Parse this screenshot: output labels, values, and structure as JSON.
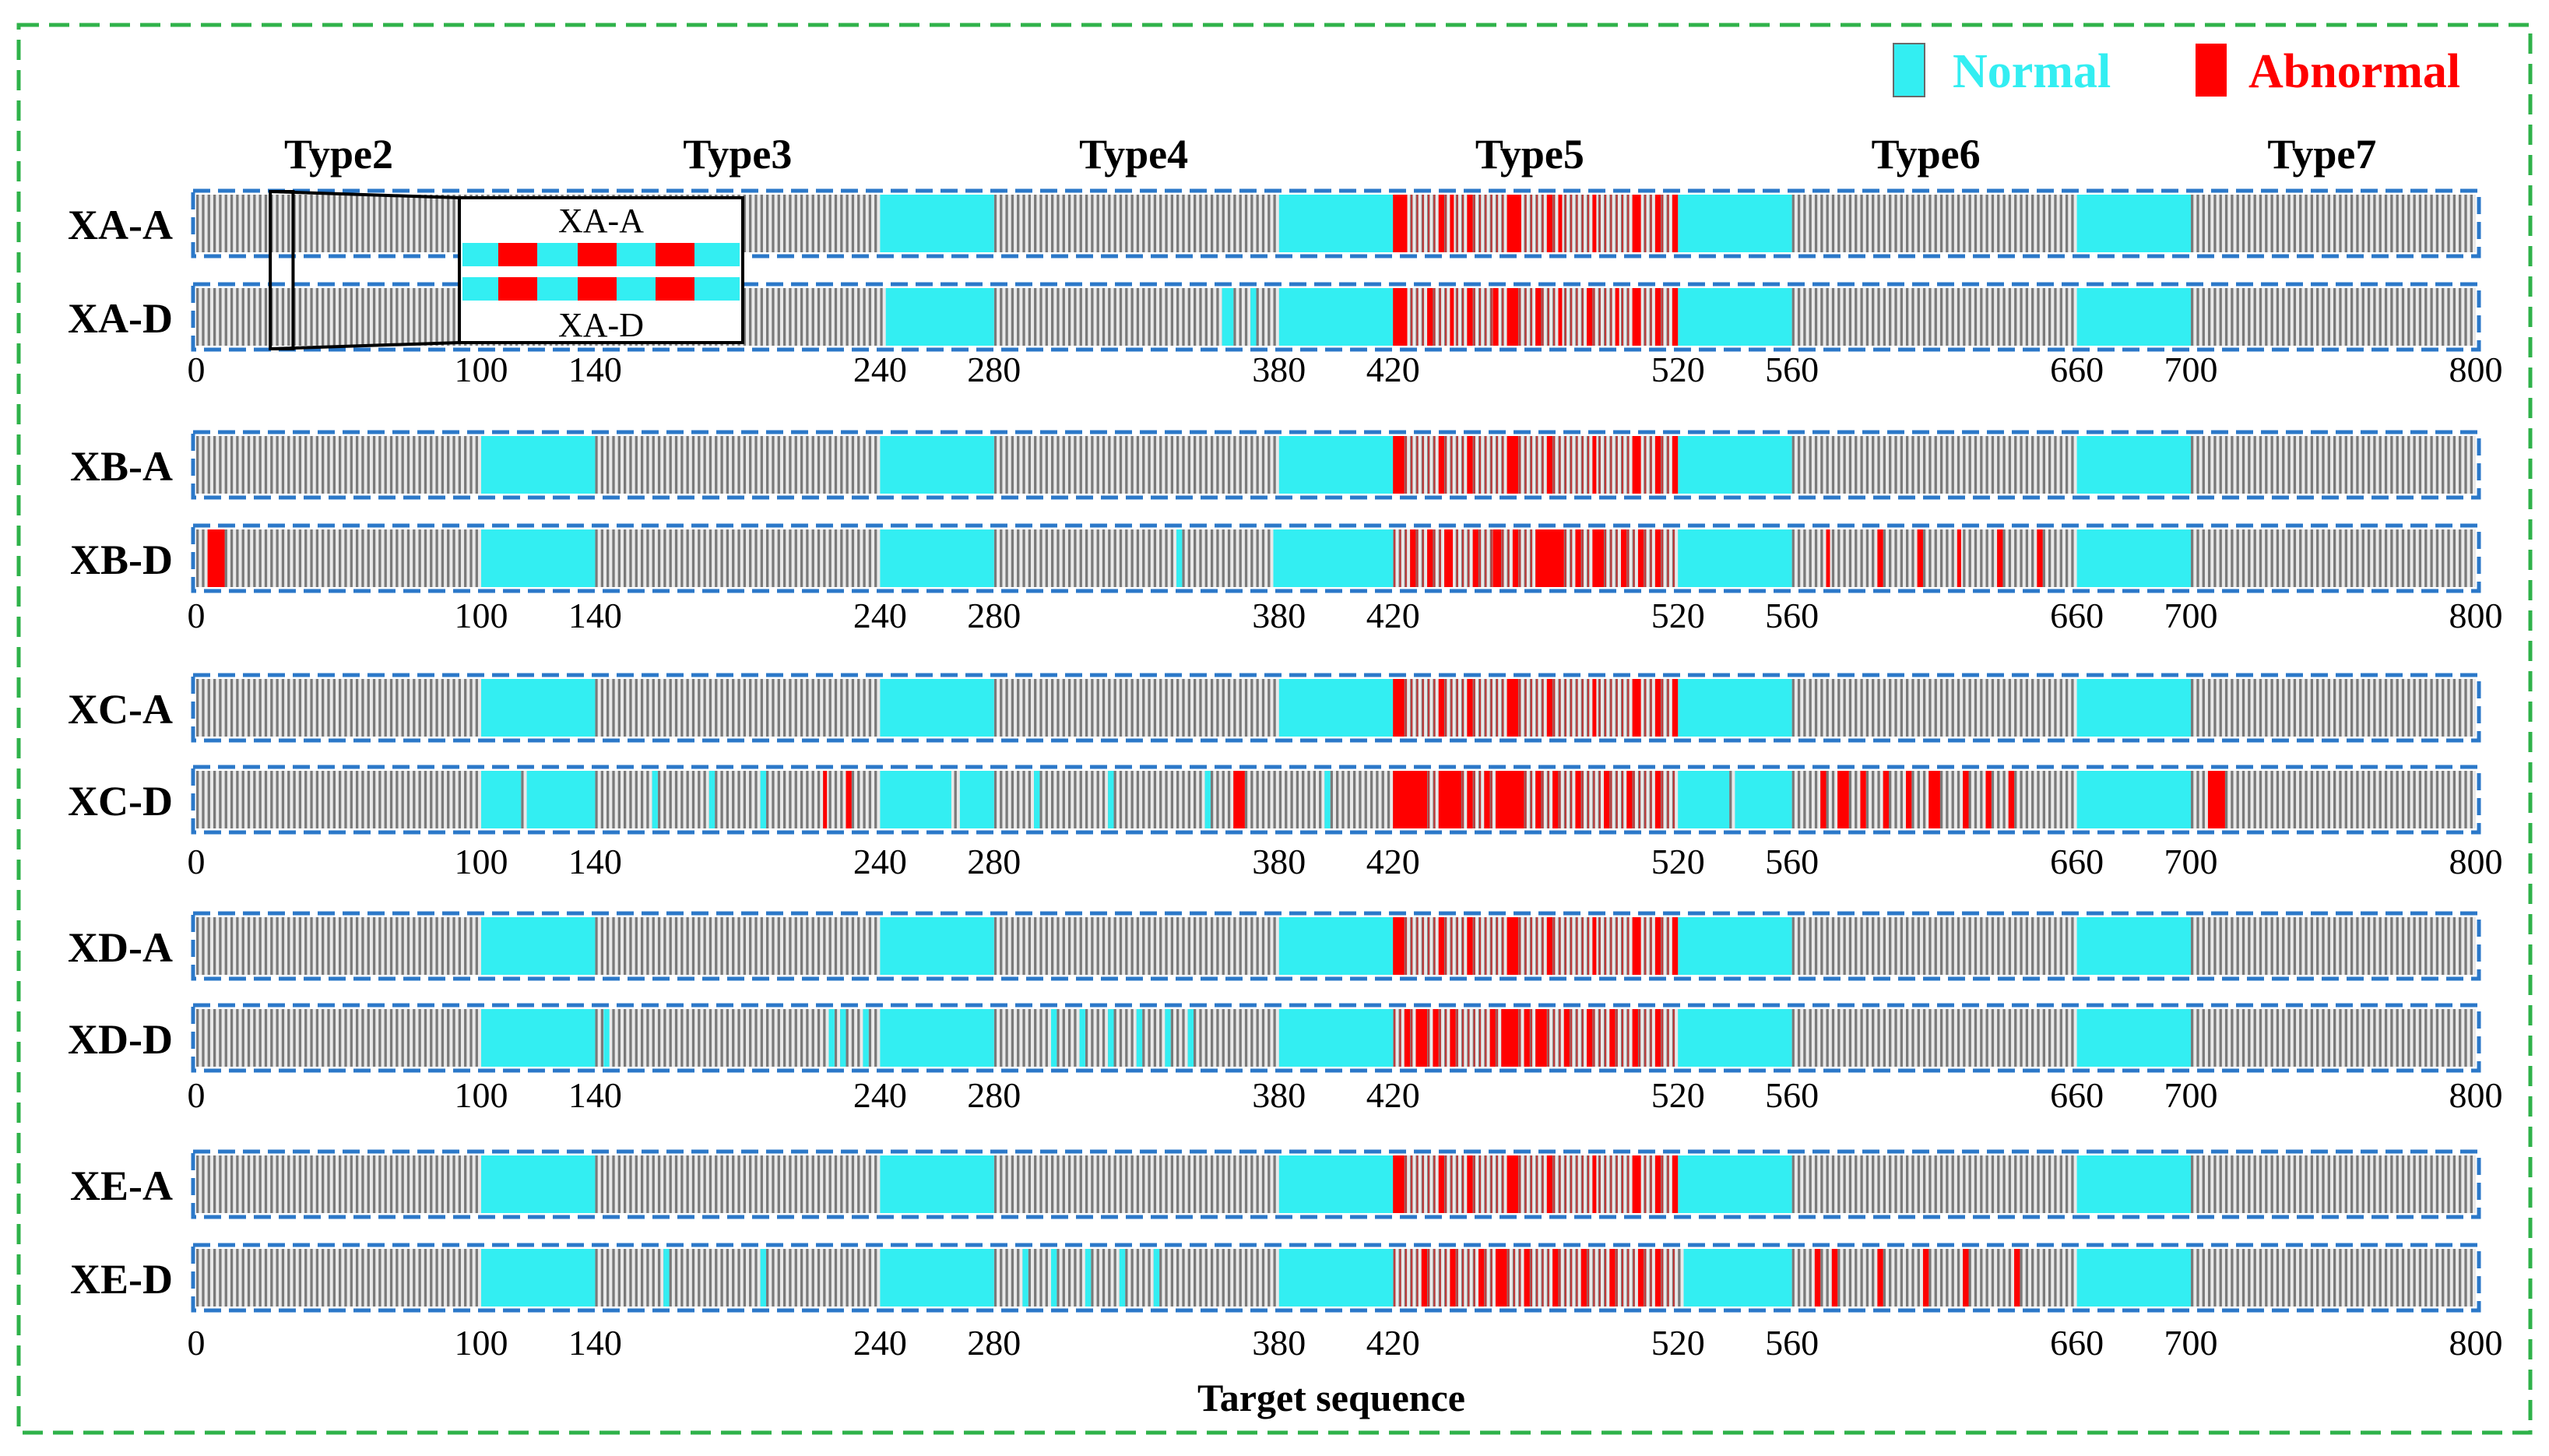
{
  "chart_data": {
    "type": "heatmap",
    "title": "",
    "xlabel": "Target sequence",
    "xlim": [
      0,
      800
    ],
    "legend": {
      "position": "top-right",
      "entries": [
        "Normal",
        "Abnormal"
      ]
    },
    "colors": {
      "normal": "#33eef2",
      "abnormal": "#ff0000",
      "stripe": "#7a7a7a",
      "band_border": "#2b78c9",
      "frame": "#2fb24a",
      "inset": "#000000"
    },
    "type_labels": [
      "Type2",
      "Type3",
      "Type4",
      "Type5",
      "Type6",
      "Type7"
    ],
    "type_label_positions": [
      50,
      190,
      329,
      468,
      607,
      746
    ],
    "tick_values": [
      0,
      100,
      140,
      240,
      280,
      380,
      420,
      520,
      560,
      660,
      700,
      800
    ],
    "tick_labels": [
      "0",
      "100",
      "140",
      "240",
      "280",
      "380",
      "420",
      "520",
      "560",
      "660",
      "700",
      "800"
    ],
    "normal_segments": [
      [
        100,
        140
      ],
      [
        240,
        280
      ],
      [
        380,
        420
      ],
      [
        520,
        560
      ],
      [
        660,
        700
      ]
    ],
    "abnormal_dense_segment": [
      420,
      520
    ],
    "groups": [
      {
        "name": "XA",
        "rows": [
          {
            "label": "XA-A",
            "normal_segments": [
              [
                240,
                280
              ],
              [
                380,
                420
              ],
              [
                520,
                560
              ],
              [
                660,
                700
              ]
            ],
            "abnormal_marks": [
              [
                420,
                425
              ],
              [
                436,
                438
              ],
              [
                440,
                441
              ],
              [
                446,
                448
              ],
              [
                460,
                465
              ],
              [
                474,
                476
              ],
              [
                478,
                479
              ],
              [
                490,
                491
              ],
              [
                504,
                507
              ],
              [
                512,
                514
              ],
              [
                518,
                520
              ]
            ],
            "extra_normal": []
          },
          {
            "label": "XA-D",
            "normal_segments": [
              [
                242,
                280
              ],
              [
                380,
                420
              ],
              [
                520,
                560
              ],
              [
                660,
                700
              ]
            ],
            "abnormal_marks": [
              [
                420,
                425
              ],
              [
                432,
                434
              ],
              [
                440,
                441
              ],
              [
                446,
                448
              ],
              [
                455,
                457
              ],
              [
                460,
                464
              ],
              [
                470,
                472
              ],
              [
                478,
                479
              ],
              [
                488,
                490
              ],
              [
                498,
                499
              ],
              [
                504,
                507
              ],
              [
                512,
                514
              ],
              [
                518,
                520
              ]
            ],
            "extra_normal": [
              [
                360,
                364
              ],
              [
                370,
                372
              ]
            ]
          }
        ]
      },
      {
        "name": "XB",
        "rows": [
          {
            "label": "XB-A",
            "normal_segments": [
              [
                100,
                140
              ],
              [
                240,
                280
              ],
              [
                380,
                420
              ],
              [
                520,
                560
              ],
              [
                660,
                700
              ]
            ],
            "abnormal_marks": [
              [
                420,
                424
              ],
              [
                436,
                438
              ],
              [
                446,
                448
              ],
              [
                460,
                464
              ],
              [
                474,
                476
              ],
              [
                490,
                491
              ],
              [
                504,
                507
              ],
              [
                512,
                514
              ],
              [
                518,
                520
              ]
            ],
            "extra_normal": []
          },
          {
            "label": "XB-D",
            "normal_segments": [
              [
                100,
                140
              ],
              [
                240,
                280
              ],
              [
                378,
                420
              ],
              [
                520,
                560
              ],
              [
                660,
                700
              ]
            ],
            "abnormal_marks": [
              [
                4,
                10
              ],
              [
                426,
                428
              ],
              [
                432,
                434
              ],
              [
                438,
                441
              ],
              [
                448,
                450
              ],
              [
                455,
                458
              ],
              [
                462,
                464
              ],
              [
                470,
                480
              ],
              [
                484,
                486
              ],
              [
                490,
                494
              ],
              [
                500,
                502
              ],
              [
                506,
                508
              ],
              [
                512,
                514
              ],
              [
                572,
                573
              ],
              [
                590,
                592
              ],
              [
                604,
                606
              ],
              [
                618,
                619
              ],
              [
                632,
                634
              ],
              [
                646,
                648
              ]
            ],
            "extra_normal": [
              [
                344,
                346
              ]
            ]
          }
        ]
      },
      {
        "name": "XC",
        "rows": [
          {
            "label": "XC-A",
            "normal_segments": [
              [
                100,
                140
              ],
              [
                240,
                280
              ],
              [
                380,
                420
              ],
              [
                520,
                560
              ],
              [
                660,
                700
              ]
            ],
            "abnormal_marks": [
              [
                420,
                424
              ],
              [
                436,
                438
              ],
              [
                446,
                448
              ],
              [
                460,
                464
              ],
              [
                474,
                476
              ],
              [
                490,
                491
              ],
              [
                504,
                507
              ],
              [
                512,
                514
              ],
              [
                518,
                520
              ]
            ],
            "extra_normal": []
          },
          {
            "label": "XC-D",
            "normal_segments": [
              [
                100,
                114
              ],
              [
                116,
                140
              ],
              [
                240,
                265
              ],
              [
                268,
                280
              ],
              [
                520,
                538
              ],
              [
                540,
                560
              ],
              [
                660,
                700
              ]
            ],
            "abnormal_marks": [
              [
                220,
                221
              ],
              [
                228,
                230
              ],
              [
                364,
                368
              ],
              [
                420,
                432
              ],
              [
                436,
                444
              ],
              [
                446,
                448
              ],
              [
                452,
                454
              ],
              [
                456,
                466
              ],
              [
                470,
                472
              ],
              [
                476,
                478
              ],
              [
                484,
                486
              ],
              [
                494,
                496
              ],
              [
                502,
                504
              ],
              [
                512,
                514
              ],
              [
                570,
                572
              ],
              [
                576,
                580
              ],
              [
                584,
                586
              ],
              [
                592,
                594
              ],
              [
                600,
                602
              ],
              [
                608,
                612
              ],
              [
                620,
                622
              ],
              [
                628,
                630
              ],
              [
                636,
                638
              ],
              [
                706,
                712
              ]
            ],
            "extra_normal": [
              [
                160,
                162
              ],
              [
                180,
                182
              ],
              [
                198,
                200
              ],
              [
                294,
                296
              ],
              [
                320,
                322
              ],
              [
                354,
                356
              ],
              [
                396,
                398
              ]
            ]
          }
        ]
      },
      {
        "name": "XD",
        "rows": [
          {
            "label": "XD-A",
            "normal_segments": [
              [
                100,
                140
              ],
              [
                240,
                280
              ],
              [
                380,
                420
              ],
              [
                520,
                560
              ],
              [
                660,
                700
              ]
            ],
            "abnormal_marks": [
              [
                420,
                424
              ],
              [
                436,
                438
              ],
              [
                446,
                448
              ],
              [
                460,
                464
              ],
              [
                474,
                476
              ],
              [
                490,
                491
              ],
              [
                504,
                507
              ],
              [
                512,
                514
              ],
              [
                518,
                520
              ]
            ],
            "extra_normal": []
          },
          {
            "label": "XD-D",
            "normal_segments": [
              [
                100,
                140
              ],
              [
                240,
                280
              ],
              [
                380,
                420
              ],
              [
                520,
                560
              ],
              [
                660,
                700
              ]
            ],
            "abnormal_marks": [
              [
                424,
                426
              ],
              [
                428,
                432
              ],
              [
                434,
                436
              ],
              [
                440,
                442
              ],
              [
                454,
                456
              ],
              [
                458,
                464
              ],
              [
                466,
                468
              ],
              [
                470,
                474
              ],
              [
                480,
                482
              ],
              [
                488,
                490
              ],
              [
                496,
                498
              ],
              [
                504,
                506
              ],
              [
                512,
                514
              ]
            ],
            "extra_normal": [
              [
                143,
                145
              ],
              [
                222,
                224
              ],
              [
                226,
                228
              ],
              [
                234,
                236
              ],
              [
                300,
                302
              ],
              [
                310,
                312
              ],
              [
                320,
                322
              ],
              [
                330,
                332
              ],
              [
                340,
                342
              ],
              [
                348,
                350
              ]
            ]
          }
        ]
      },
      {
        "name": "XE",
        "rows": [
          {
            "label": "XE-A",
            "normal_segments": [
              [
                100,
                140
              ],
              [
                240,
                280
              ],
              [
                380,
                420
              ],
              [
                520,
                560
              ],
              [
                660,
                700
              ]
            ],
            "abnormal_marks": [
              [
                420,
                424
              ],
              [
                436,
                438
              ],
              [
                446,
                448
              ],
              [
                460,
                464
              ],
              [
                474,
                476
              ],
              [
                490,
                491
              ],
              [
                504,
                507
              ],
              [
                512,
                514
              ],
              [
                518,
                520
              ]
            ],
            "extra_normal": []
          },
          {
            "label": "XE-D",
            "normal_segments": [
              [
                100,
                140
              ],
              [
                240,
                280
              ],
              [
                380,
                420
              ],
              [
                522,
                560
              ],
              [
                660,
                700
              ]
            ],
            "abnormal_marks": [
              [
                430,
                432
              ],
              [
                440,
                442
              ],
              [
                450,
                452
              ],
              [
                456,
                460
              ],
              [
                466,
                468
              ],
              [
                476,
                478
              ],
              [
                486,
                488
              ],
              [
                496,
                498
              ],
              [
                506,
                508
              ],
              [
                512,
                514
              ],
              [
                568,
                570
              ],
              [
                574,
                576
              ],
              [
                590,
                592
              ],
              [
                606,
                608
              ],
              [
                620,
                622
              ],
              [
                638,
                640
              ]
            ],
            "extra_normal": [
              [
                164,
                166
              ],
              [
                198,
                200
              ],
              [
                290,
                292
              ],
              [
                300,
                302
              ],
              [
                312,
                314
              ],
              [
                324,
                326
              ],
              [
                336,
                338
              ]
            ]
          }
        ]
      }
    ],
    "inset": {
      "source_range": [
        26,
        34
      ],
      "labels": [
        "XA-A",
        "XA-D"
      ]
    }
  }
}
